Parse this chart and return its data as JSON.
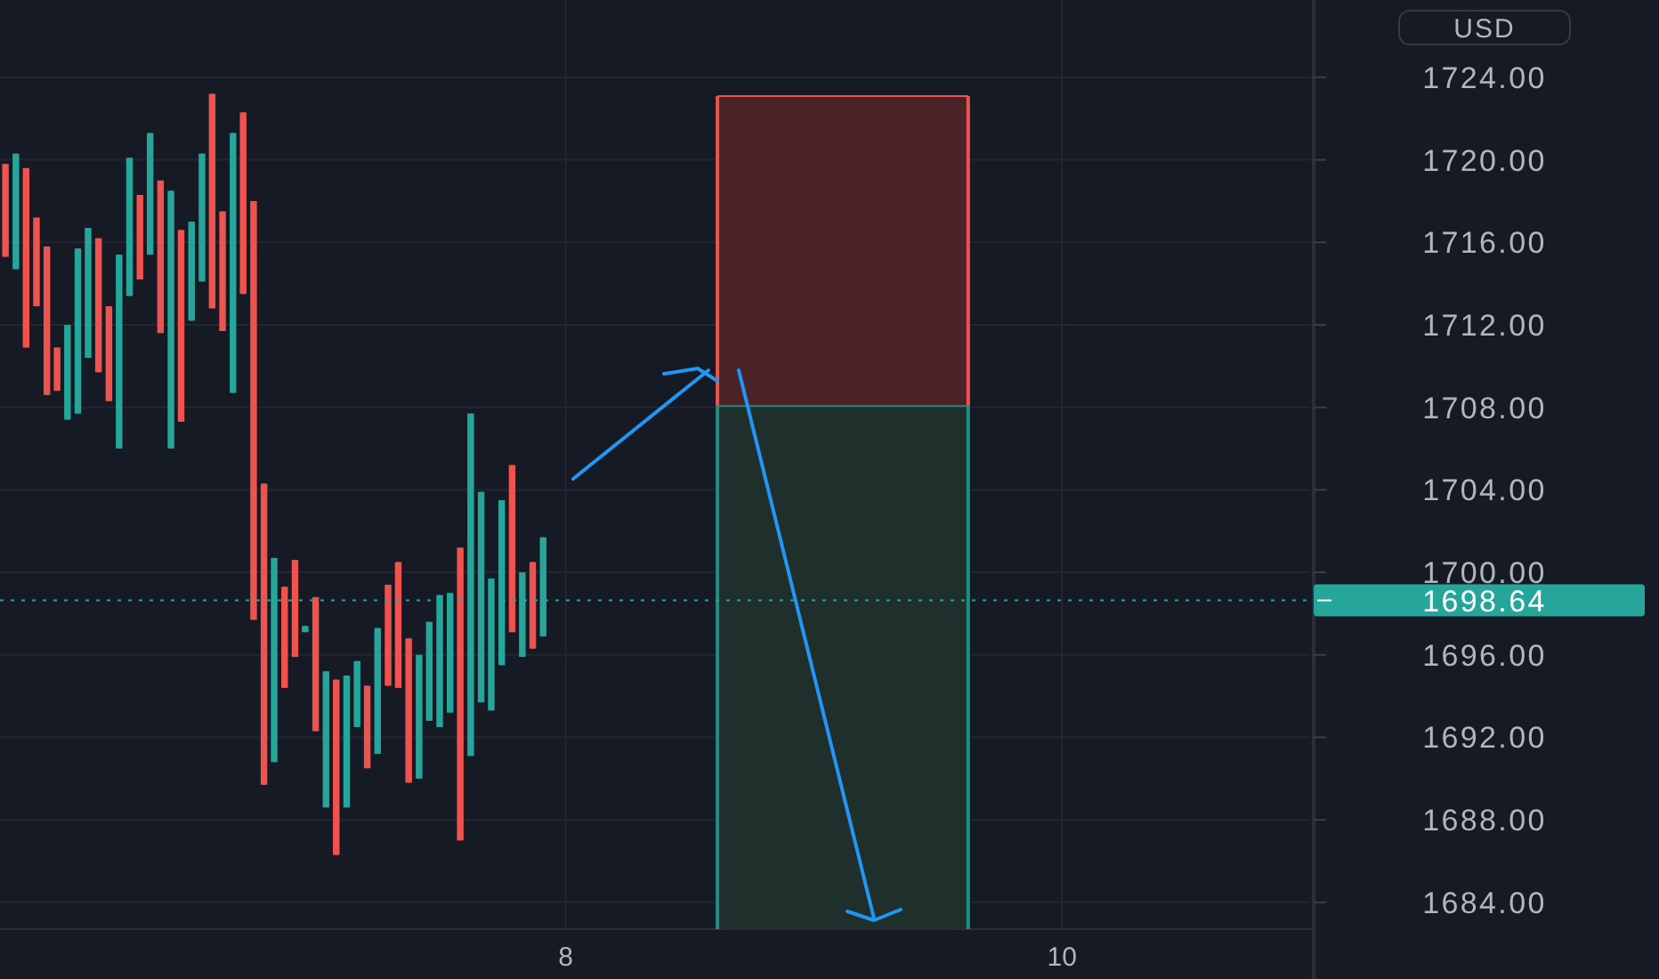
{
  "chart_data": {
    "type": "candlestick",
    "ylabel": "USD",
    "x": [
      5.742,
      5.784,
      5.825,
      5.867,
      5.909,
      5.95,
      5.992,
      6.034,
      6.075,
      6.117,
      6.159,
      6.2,
      6.242,
      6.284,
      6.325,
      6.367,
      6.409,
      6.45,
      6.492,
      6.534,
      6.575,
      6.617,
      6.659,
      6.7,
      6.742,
      6.784,
      6.825,
      6.867,
      6.909,
      6.95,
      6.992,
      7.034,
      7.075,
      7.117,
      7.159,
      7.2,
      7.242,
      7.284,
      7.325,
      7.367,
      7.409,
      7.45,
      7.492,
      7.534,
      7.575,
      7.617,
      7.659,
      7.7,
      7.742,
      7.784,
      7.825,
      7.867,
      7.909
    ],
    "ohlc": [
      [
        1719.8,
        1719.8,
        1715.3,
        1715.3
      ],
      [
        1714.7,
        1720.3,
        1714.7,
        1720.3
      ],
      [
        1719.6,
        1719.6,
        1710.9,
        1710.9
      ],
      [
        1717.2,
        1717.2,
        1712.9,
        1712.9
      ],
      [
        1715.8,
        1715.8,
        1708.6,
        1708.6
      ],
      [
        1710.9,
        1710.9,
        1708.8,
        1708.8
      ],
      [
        1707.4,
        1712.0,
        1707.4,
        1712.0
      ],
      [
        1707.7,
        1715.7,
        1707.7,
        1715.7
      ],
      [
        1710.4,
        1716.7,
        1710.4,
        1716.7
      ],
      [
        1716.2,
        1716.2,
        1709.7,
        1709.7
      ],
      [
        1712.9,
        1712.9,
        1708.3,
        1708.3
      ],
      [
        1706.0,
        1715.4,
        1706.0,
        1715.4
      ],
      [
        1713.4,
        1720.1,
        1713.4,
        1720.1
      ],
      [
        1718.3,
        1718.3,
        1714.2,
        1714.2
      ],
      [
        1715.4,
        1721.3,
        1715.4,
        1721.3
      ],
      [
        1719.0,
        1719.0,
        1711.6,
        1711.6
      ],
      [
        1706.0,
        1718.5,
        1706.0,
        1718.5
      ],
      [
        1716.6,
        1716.6,
        1707.3,
        1707.3
      ],
      [
        1712.2,
        1717.0,
        1712.2,
        1717.0
      ],
      [
        1714.1,
        1720.3,
        1714.1,
        1720.3
      ],
      [
        1723.2,
        1723.2,
        1712.8,
        1712.8
      ],
      [
        1717.5,
        1717.5,
        1711.7,
        1711.7
      ],
      [
        1708.7,
        1721.3,
        1708.7,
        1721.3
      ],
      [
        1722.3,
        1722.3,
        1713.5,
        1713.5
      ],
      [
        1718.0,
        1718.0,
        1697.7,
        1697.7
      ],
      [
        1704.3,
        1704.3,
        1689.7,
        1689.7
      ],
      [
        1690.8,
        1700.7,
        1690.8,
        1700.7
      ],
      [
        1699.3,
        1699.3,
        1694.4,
        1694.4
      ],
      [
        1700.6,
        1700.6,
        1695.9,
        1695.9
      ],
      [
        1697.1,
        1697.4,
        1697.1,
        1697.4
      ],
      [
        1698.8,
        1698.8,
        1692.3,
        1692.3
      ],
      [
        1688.6,
        1695.2,
        1688.6,
        1695.2
      ],
      [
        1694.8,
        1694.8,
        1686.3,
        1686.3
      ],
      [
        1688.6,
        1695.0,
        1688.6,
        1695.0
      ],
      [
        1692.5,
        1695.7,
        1692.5,
        1695.7
      ],
      [
        1694.5,
        1694.5,
        1690.5,
        1690.5
      ],
      [
        1691.2,
        1697.3,
        1691.2,
        1697.3
      ],
      [
        1699.4,
        1699.4,
        1694.5,
        1694.5
      ],
      [
        1700.5,
        1700.5,
        1694.4,
        1694.4
      ],
      [
        1696.8,
        1696.8,
        1689.8,
        1689.8
      ],
      [
        1690.0,
        1696.0,
        1690.0,
        1696.0
      ],
      [
        1692.8,
        1697.6,
        1692.8,
        1697.6
      ],
      [
        1692.5,
        1698.9,
        1692.5,
        1698.9
      ],
      [
        1693.2,
        1699.0,
        1693.2,
        1699.0
      ],
      [
        1701.2,
        1701.2,
        1687.0,
        1687.0
      ],
      [
        1691.1,
        1707.7,
        1691.1,
        1707.7
      ],
      [
        1693.7,
        1703.9,
        1693.7,
        1703.9
      ],
      [
        1693.3,
        1699.7,
        1693.3,
        1699.7
      ],
      [
        1695.5,
        1703.5,
        1695.5,
        1703.5
      ],
      [
        1705.2,
        1705.2,
        1697.1,
        1697.1
      ],
      [
        1695.9,
        1700.0,
        1695.9,
        1700.0
      ],
      [
        1700.5,
        1700.5,
        1696.3,
        1696.3
      ],
      [
        1696.9,
        1701.7,
        1696.9,
        1701.7
      ]
    ],
    "xlim": [
      5.72,
      11.0
    ],
    "xticks": [
      8,
      10
    ],
    "ylim": [
      1682.7,
      1727.75
    ],
    "yticks": [
      {
        "value": 1684,
        "label": "1684.00"
      },
      {
        "value": 1688,
        "label": "1688.00"
      },
      {
        "value": 1692,
        "label": "1692.00"
      },
      {
        "value": 1696,
        "label": "1696.00"
      },
      {
        "value": 1700,
        "label": "1700.00"
      },
      {
        "value": 1704,
        "label": "1704.00"
      },
      {
        "value": 1708,
        "label": "1708.00"
      },
      {
        "value": 1712,
        "label": "1712.00"
      },
      {
        "value": 1716,
        "label": "1716.00"
      },
      {
        "value": 1720,
        "label": "1720.00"
      },
      {
        "value": 1724,
        "label": "1724.00"
      }
    ],
    "ref_lines": [
      {
        "axis": "y",
        "value": 1698.64,
        "label": "1698.64",
        "color": "#26a69a",
        "line_style": "dotted"
      }
    ],
    "bands": [
      {
        "axis": "y",
        "from": 1708.1,
        "to": 1723.1,
        "color": "#4a2328"
      },
      {
        "axis": "y",
        "from": 1682.7,
        "to": 1708.1,
        "color": "#1e2f2c"
      }
    ],
    "grid": true
  }
}
